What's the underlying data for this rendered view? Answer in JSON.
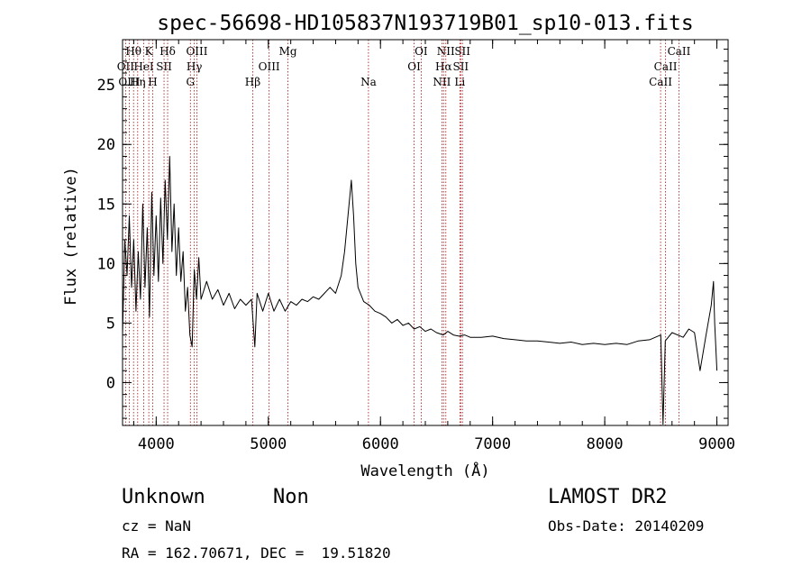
{
  "chart_data": {
    "type": "line",
    "title": "spec-56698-HD105837N193719B01_sp10-013.fits",
    "xlabel": "Wavelength (Å)",
    "ylabel": "Flux (relative)",
    "xlim": [
      3700,
      9100
    ],
    "ylim": [
      -3.6,
      28.8
    ],
    "x_ticks": [
      4000,
      5000,
      6000,
      7000,
      8000,
      9000
    ],
    "x_minor_step": 200,
    "y_ticks": [
      0,
      5,
      10,
      15,
      20,
      25
    ],
    "y_minor_step": 1,
    "grid": false,
    "series": [
      {
        "points": [
          [
            3700,
            4.0
          ],
          [
            3720,
            12.0
          ],
          [
            3740,
            9.0
          ],
          [
            3760,
            14.0
          ],
          [
            3780,
            8.0
          ],
          [
            3800,
            12.0
          ],
          [
            3820,
            6.0
          ],
          [
            3840,
            11.0
          ],
          [
            3860,
            7.0
          ],
          [
            3880,
            15.0
          ],
          [
            3900,
            8.0
          ],
          [
            3920,
            13.0
          ],
          [
            3940,
            5.5
          ],
          [
            3960,
            16.0
          ],
          [
            3980,
            9.0
          ],
          [
            4000,
            14.0
          ],
          [
            4020,
            8.5
          ],
          [
            4040,
            15.5
          ],
          [
            4060,
            10.0
          ],
          [
            4080,
            17.0
          ],
          [
            4100,
            12.0
          ],
          [
            4120,
            19.0
          ],
          [
            4140,
            11.0
          ],
          [
            4160,
            15.0
          ],
          [
            4180,
            9.0
          ],
          [
            4200,
            13.0
          ],
          [
            4220,
            8.5
          ],
          [
            4240,
            11.0
          ],
          [
            4260,
            6.0
          ],
          [
            4280,
            8.0
          ],
          [
            4300,
            4.0
          ],
          [
            4320,
            3.0
          ],
          [
            4340,
            9.5
          ],
          [
            4360,
            7.0
          ],
          [
            4380,
            10.5
          ],
          [
            4400,
            7.0
          ],
          [
            4450,
            8.5
          ],
          [
            4500,
            7.0
          ],
          [
            4550,
            7.8
          ],
          [
            4600,
            6.5
          ],
          [
            4650,
            7.5
          ],
          [
            4700,
            6.2
          ],
          [
            4750,
            7.0
          ],
          [
            4800,
            6.5
          ],
          [
            4850,
            7.0
          ],
          [
            4880,
            3.0
          ],
          [
            4900,
            7.5
          ],
          [
            4950,
            6.0
          ],
          [
            5000,
            7.5
          ],
          [
            5050,
            6.0
          ],
          [
            5100,
            7.0
          ],
          [
            5150,
            6.0
          ],
          [
            5200,
            6.8
          ],
          [
            5250,
            6.5
          ],
          [
            5300,
            7.0
          ],
          [
            5350,
            6.8
          ],
          [
            5400,
            7.2
          ],
          [
            5450,
            7.0
          ],
          [
            5500,
            7.5
          ],
          [
            5550,
            8.0
          ],
          [
            5600,
            7.5
          ],
          [
            5650,
            9.0
          ],
          [
            5680,
            11.0
          ],
          [
            5700,
            13.0
          ],
          [
            5720,
            15.0
          ],
          [
            5740,
            17.0
          ],
          [
            5760,
            14.0
          ],
          [
            5780,
            10.0
          ],
          [
            5800,
            8.0
          ],
          [
            5850,
            6.8
          ],
          [
            5900,
            6.5
          ],
          [
            5950,
            6.0
          ],
          [
            6000,
            5.8
          ],
          [
            6050,
            5.5
          ],
          [
            6100,
            5.0
          ],
          [
            6150,
            5.3
          ],
          [
            6200,
            4.8
          ],
          [
            6250,
            5.0
          ],
          [
            6300,
            4.5
          ],
          [
            6350,
            4.7
          ],
          [
            6400,
            4.3
          ],
          [
            6450,
            4.5
          ],
          [
            6500,
            4.2
          ],
          [
            6560,
            4.0
          ],
          [
            6600,
            4.3
          ],
          [
            6650,
            4.0
          ],
          [
            6700,
            3.9
          ],
          [
            6750,
            4.0
          ],
          [
            6800,
            3.8
          ],
          [
            6900,
            3.8
          ],
          [
            7000,
            3.9
          ],
          [
            7100,
            3.7
          ],
          [
            7200,
            3.6
          ],
          [
            7300,
            3.5
          ],
          [
            7400,
            3.5
          ],
          [
            7500,
            3.4
          ],
          [
            7600,
            3.3
          ],
          [
            7700,
            3.4
          ],
          [
            7800,
            3.2
          ],
          [
            7900,
            3.3
          ],
          [
            8000,
            3.2
          ],
          [
            8100,
            3.3
          ],
          [
            8200,
            3.2
          ],
          [
            8300,
            3.5
          ],
          [
            8400,
            3.6
          ],
          [
            8500,
            4.0
          ],
          [
            8520,
            -3.5
          ],
          [
            8540,
            3.5
          ],
          [
            8600,
            4.2
          ],
          [
            8700,
            3.8
          ],
          [
            8750,
            4.5
          ],
          [
            8800,
            4.2
          ],
          [
            8850,
            1.0
          ],
          [
            8900,
            3.8
          ],
          [
            8950,
            6.5
          ],
          [
            8970,
            8.5
          ],
          [
            8980,
            5.0
          ],
          [
            9000,
            1.0
          ]
        ]
      }
    ],
    "line_markers": [
      {
        "label": "Hθ",
        "wl": 3798,
        "row": 0
      },
      {
        "label": "OII",
        "wl": 3727,
        "row": 1
      },
      {
        "label": "OIII",
        "wl": 3760,
        "row": 2
      },
      {
        "label": "HeI",
        "wl": 3889,
        "row": 1
      },
      {
        "label": "Hη",
        "wl": 3835,
        "row": 2
      },
      {
        "label": "K",
        "wl": 3934,
        "row": 0
      },
      {
        "label": "SII",
        "wl": 4070,
        "row": 1
      },
      {
        "label": "H",
        "wl": 3969,
        "row": 2
      },
      {
        "label": "Hδ",
        "wl": 4102,
        "row": 0
      },
      {
        "label": "OIII",
        "wl": 4363,
        "row": 0
      },
      {
        "label": "Hγ",
        "wl": 4340,
        "row": 1
      },
      {
        "label": "G",
        "wl": 4305,
        "row": 2
      },
      {
        "label": "Mg",
        "wl": 5175,
        "row": 0
      },
      {
        "label": "OIII",
        "wl": 5007,
        "row": 1
      },
      {
        "label": "Hβ",
        "wl": 4861,
        "row": 2
      },
      {
        "label": "Na",
        "wl": 5893,
        "row": 2
      },
      {
        "label": "OI",
        "wl": 6363,
        "row": 0
      },
      {
        "label": "OI",
        "wl": 6300,
        "row": 1
      },
      {
        "label": "NII",
        "wl": 6583,
        "row": 0
      },
      {
        "label": "Hα",
        "wl": 6563,
        "row": 1
      },
      {
        "label": "NII",
        "wl": 6548,
        "row": 2
      },
      {
        "label": "SII",
        "wl": 6731,
        "row": 0
      },
      {
        "label": "SII",
        "wl": 6716,
        "row": 1
      },
      {
        "label": "Li",
        "wl": 6708,
        "row": 2
      },
      {
        "label": "CaII",
        "wl": 8662,
        "row": 0
      },
      {
        "label": "CaII",
        "wl": 8542,
        "row": 1
      },
      {
        "label": "CaII",
        "wl": 8498,
        "row": 2
      }
    ]
  },
  "info": {
    "class_label": "Unknown",
    "subclass_label": "Non",
    "survey": "LAMOST DR2",
    "cz": "cz = NaN",
    "obs_date": "Obs-Date: 20140209",
    "coords": "RA = 162.70671, DEC =  19.51820"
  },
  "colors": {
    "spectrum": "#000000",
    "marker_line": "#a01010",
    "axes": "#000000"
  }
}
